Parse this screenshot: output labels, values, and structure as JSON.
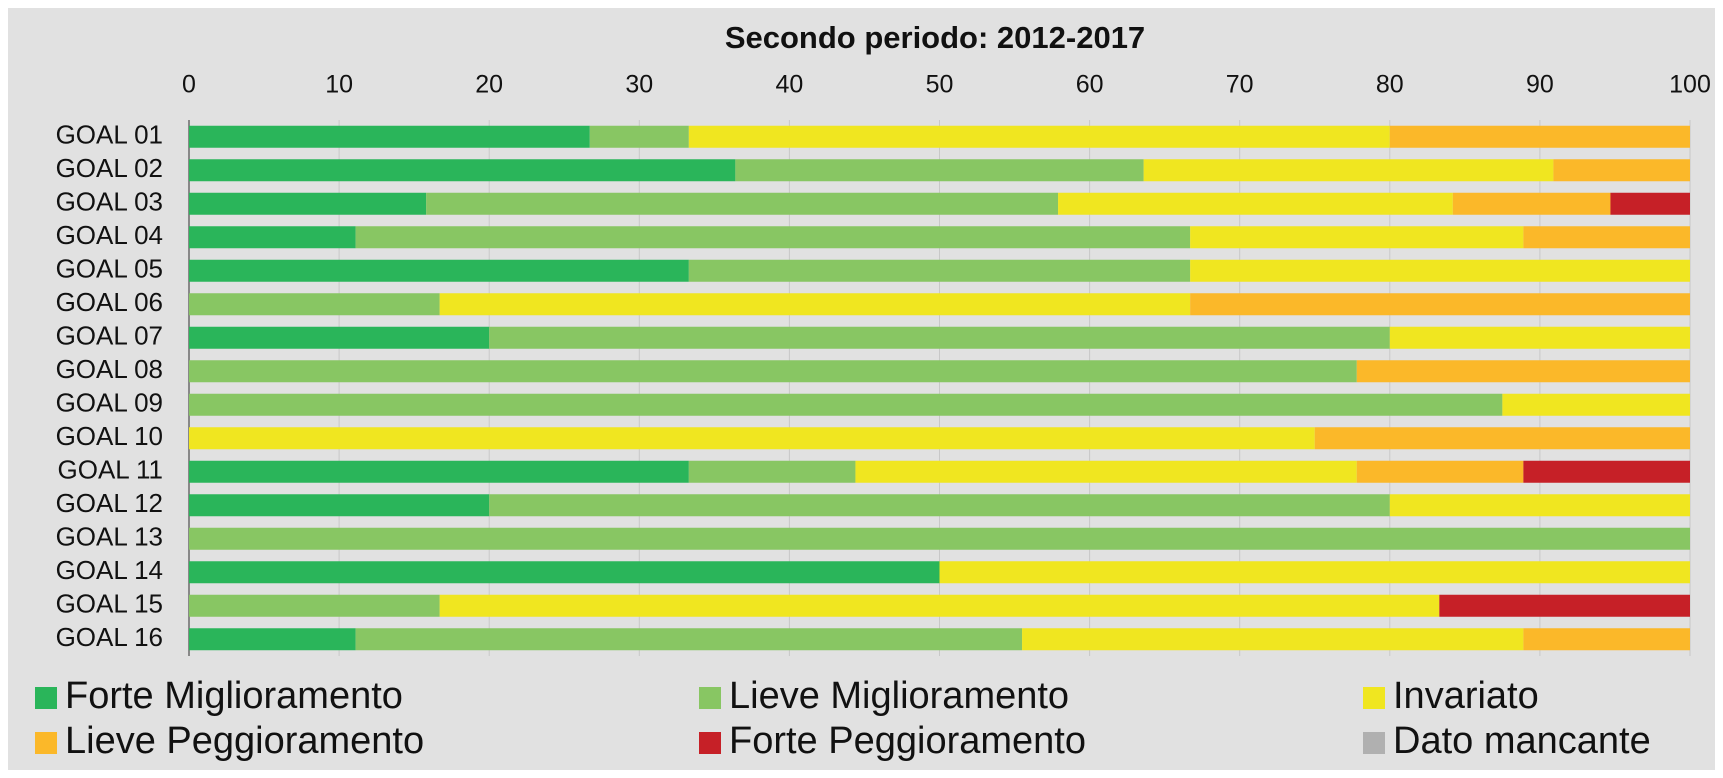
{
  "chart_data": {
    "type": "stacked_barh",
    "title": "Secondo periodo: 2012-2017",
    "categories": [
      "GOAL 01",
      "GOAL 02",
      "GOAL 03",
      "GOAL 04",
      "GOAL 05",
      "GOAL 06",
      "GOAL 07",
      "GOAL 08",
      "GOAL 09",
      "GOAL 10",
      "GOAL 11",
      "GOAL 12",
      "GOAL 13",
      "GOAL 14",
      "GOAL 15",
      "GOAL 16"
    ],
    "series": [
      {
        "name": "Forte Miglioramento",
        "color": "#2ab55a",
        "values": [
          26.7,
          36.4,
          15.8,
          11.1,
          33.3,
          0,
          20,
          0,
          0,
          0,
          33.3,
          20,
          0,
          50,
          0,
          11.1
        ]
      },
      {
        "name": "Lieve Miglioramento",
        "color": "#88c663",
        "values": [
          6.6,
          27.2,
          42.1,
          55.6,
          33.4,
          16.7,
          60,
          77.8,
          87.5,
          0,
          11.1,
          60,
          100,
          0,
          16.7,
          44.4
        ]
      },
      {
        "name": "Invariato",
        "color": "#f0e620",
        "values": [
          46.7,
          27.3,
          26.3,
          22.2,
          33.3,
          50,
          20,
          0,
          12.5,
          75,
          33.4,
          20,
          0,
          50,
          66.6,
          33.4
        ]
      },
      {
        "name": "Lieve Peggioramento",
        "color": "#fbb829",
        "values": [
          20,
          9.1,
          10.5,
          11.1,
          0,
          33.3,
          0,
          22.2,
          0,
          25,
          11.1,
          0,
          0,
          0,
          0,
          11.1
        ]
      },
      {
        "name": "Forte Peggioramento",
        "color": "#c62027",
        "values": [
          0,
          0,
          5.3,
          0,
          0,
          0,
          0,
          0,
          0,
          0,
          11.1,
          0,
          0,
          0,
          16.7,
          0
        ]
      },
      {
        "name": "Dato mancante",
        "color": "#b0b0b0",
        "values": [
          0,
          0,
          0,
          0,
          0,
          0,
          0,
          0,
          0,
          0,
          0,
          0,
          0,
          0,
          0,
          0
        ]
      }
    ],
    "xlim": [
      0,
      100
    ],
    "xticks": [
      0,
      10,
      20,
      30,
      40,
      50,
      60,
      70,
      80,
      90,
      100
    ],
    "grid": true,
    "legend": "bottom"
  }
}
